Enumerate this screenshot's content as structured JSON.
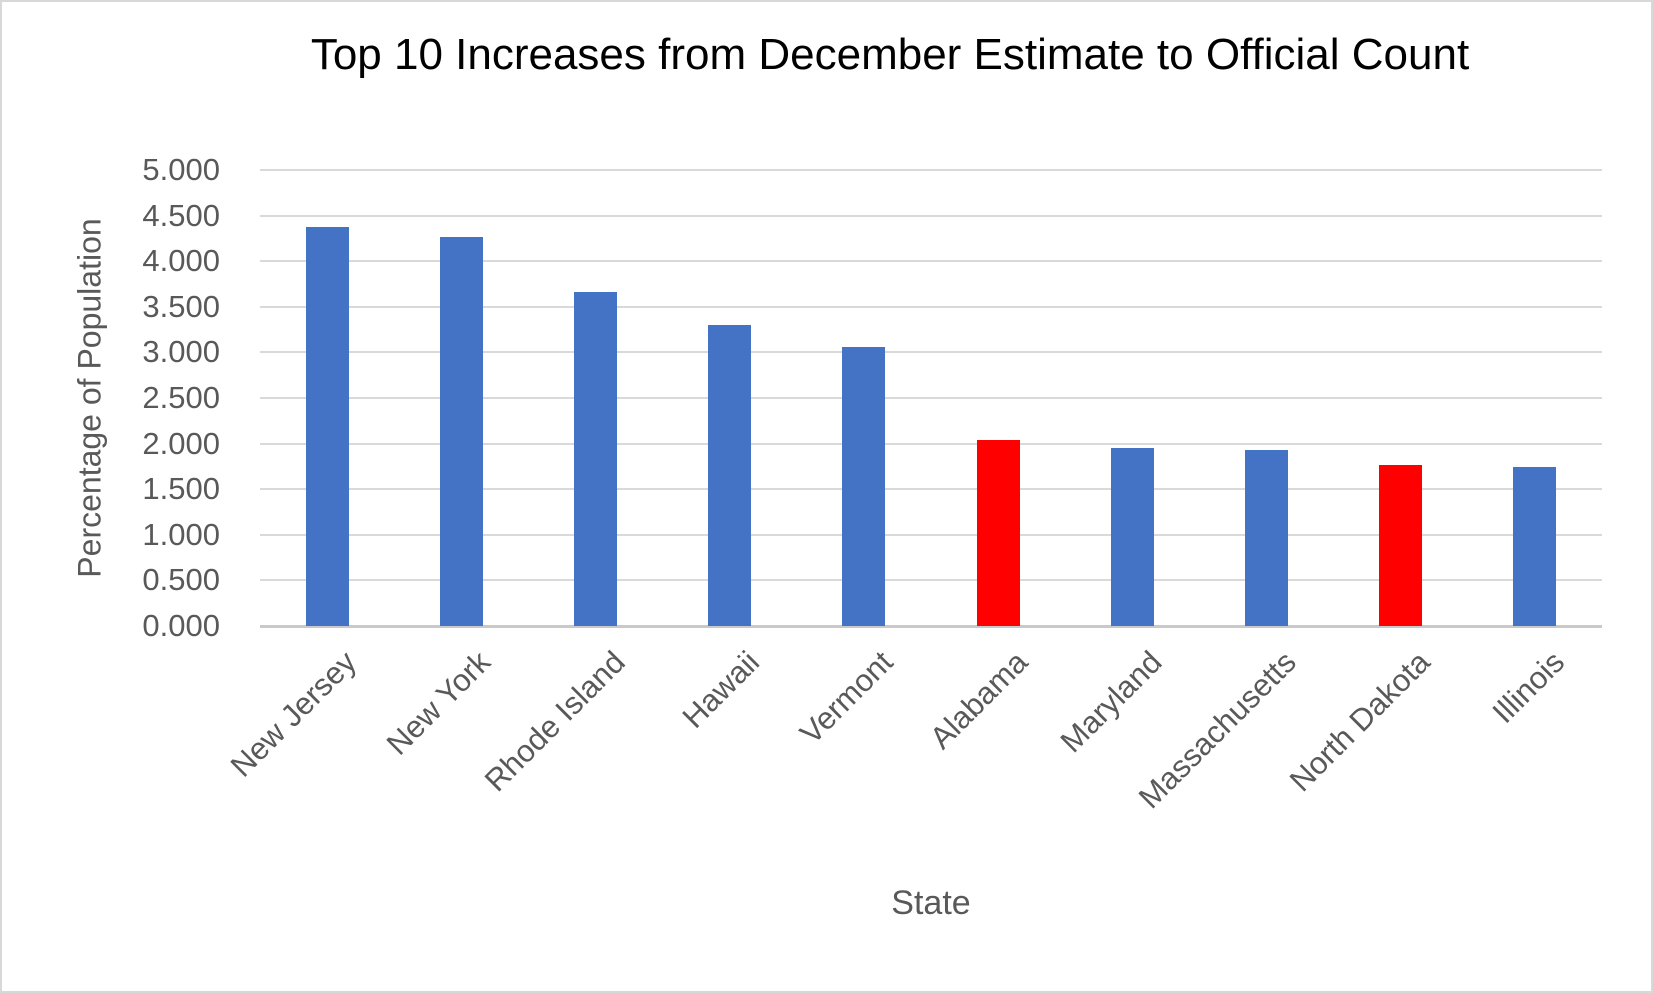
{
  "chart_data": {
    "type": "bar",
    "title": "Top 10 Increases from December Estimate to Official Count",
    "xlabel": "State",
    "ylabel": "Percentage of Population",
    "categories": [
      "New Jersey",
      "New York",
      "Rhode Island",
      "Hawaii",
      "Vermont",
      "Alabama",
      "Maryland",
      "Massachusetts",
      "North Dakota",
      "Illinois"
    ],
    "values": [
      4.37,
      4.27,
      3.66,
      3.3,
      3.06,
      2.04,
      1.95,
      1.93,
      1.76,
      1.74
    ],
    "bar_colors": [
      "#4472C4",
      "#4472C4",
      "#4472C4",
      "#4472C4",
      "#4472C4",
      "#FF0000",
      "#4472C4",
      "#4472C4",
      "#FF0000",
      "#4472C4"
    ],
    "highlighted_categories": [
      "Alabama",
      "North Dakota"
    ],
    "ylim": [
      0,
      5
    ],
    "ytick_step": 0.5,
    "y_tick_labels": [
      "0.000",
      "0.500",
      "1.000",
      "1.500",
      "2.000",
      "2.500",
      "3.000",
      "3.500",
      "4.000",
      "4.500",
      "5.000"
    ],
    "grid": "horizontal",
    "legend": "none",
    "colors": {
      "bar_default": "#4472C4",
      "bar_highlight": "#FF0000",
      "gridline": "#D9D9D9",
      "axis_line": "#C9C9C9",
      "axis_text": "#595959",
      "title_text": "#000000",
      "background": "#FFFFFF",
      "border": "#D8D8D8"
    }
  }
}
